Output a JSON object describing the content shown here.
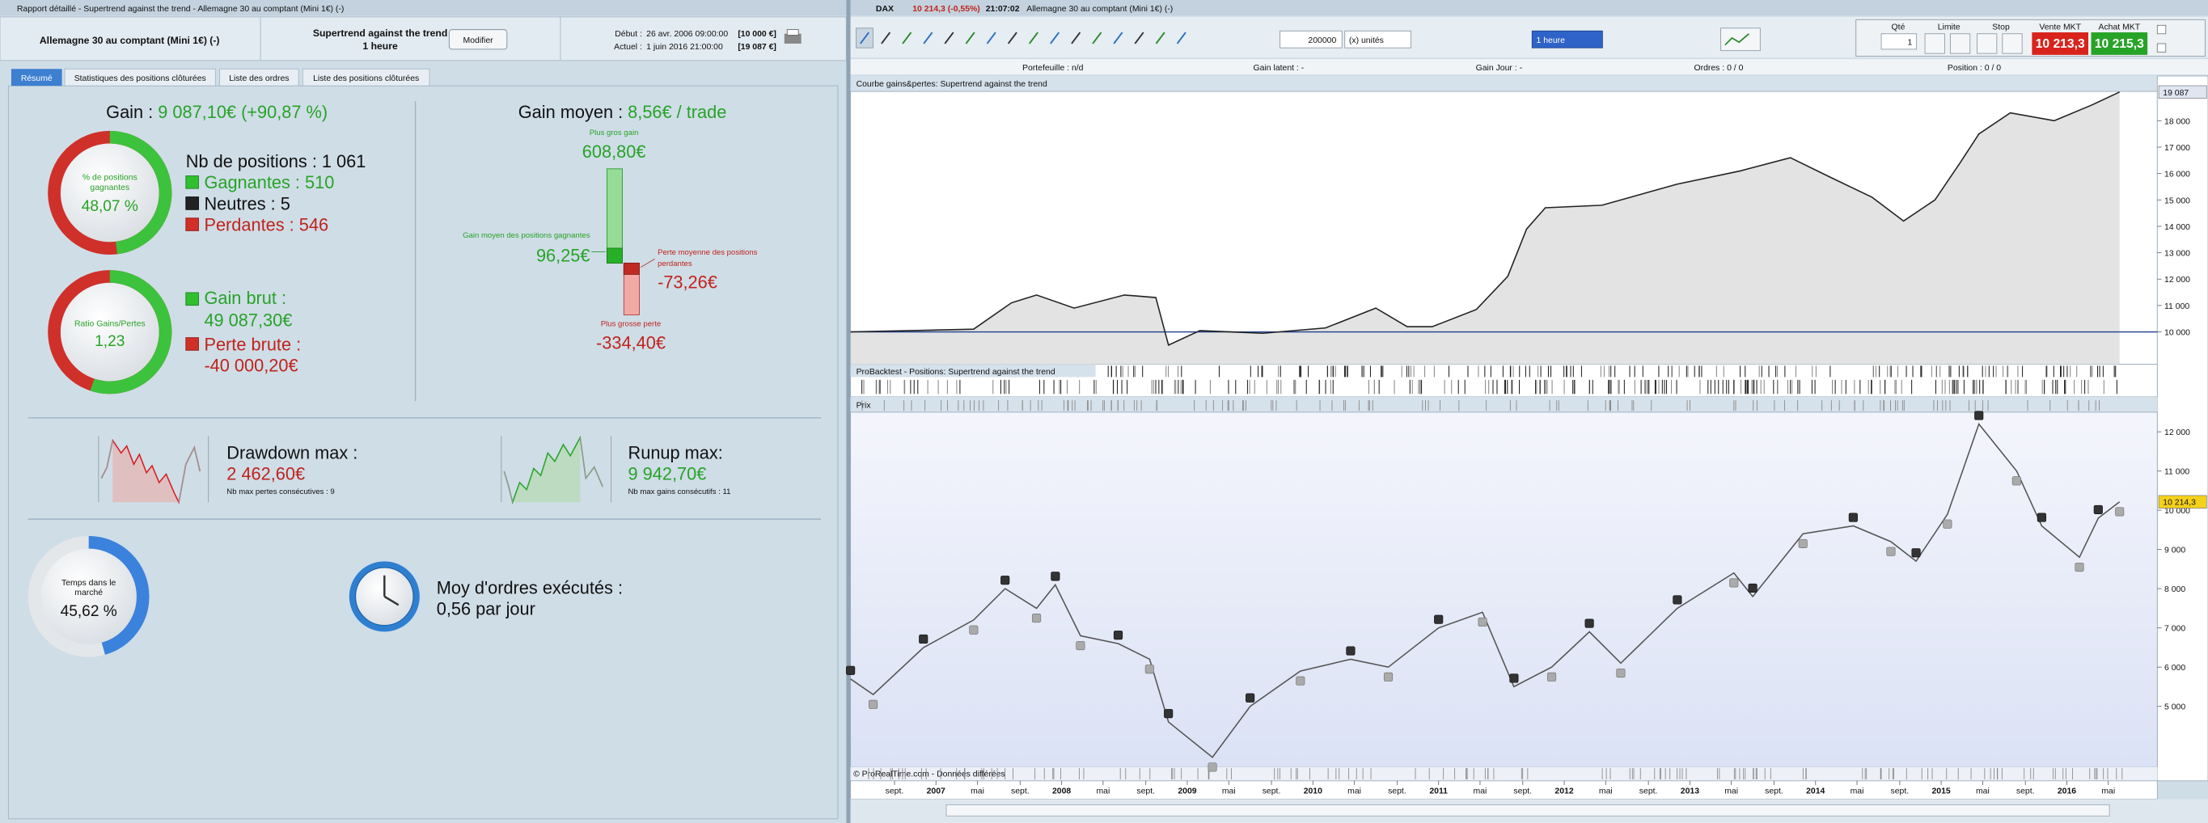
{
  "report": {
    "window_title": "Rapport détaillé - Supertrend against the trend - Allemagne 30 au comptant (Mini 1€) (-)",
    "instrument": "Allemagne 30 au comptant (Mini 1€) (-)",
    "system": "Supertrend against the trend",
    "timeframe": "1 heure",
    "edit_button": "Modifier",
    "start_label": "Début :",
    "start_date": "26 avr. 2006 09:00:00",
    "start_capital": "[10 000 €]",
    "current_label": "Actuel :",
    "current_date": "1 juin 2016 21:00:00",
    "current_capital": "[19 087 €]",
    "tabs": [
      "Résumé",
      "Statistiques des positions clôturées",
      "Liste des ordres",
      "Liste des positions clôturées"
    ],
    "gain_label": "Gain : ",
    "gain_value": "9 087,10€ (+90,87 %)",
    "win_donut_label": [
      "% de positions",
      "gagnantes"
    ],
    "win_pct": {
      "value": 48.07,
      "label": "48,07 %"
    },
    "positions_total": "Nb de positions : 1 061",
    "winners": "Gagnantes : 510",
    "neutral": "Neutres : 5",
    "losers": "Perdantes : 546",
    "ratio_label": "Ratio Gains/Pertes",
    "ratio_value": "1,23",
    "gross_gain_label": "Gain brut :",
    "gross_gain": {
      "value": 49087.3,
      "label": "49 087,30€"
    },
    "gross_loss_label": "Perte brute :",
    "gross_loss": {
      "value": -40000.2,
      "label": "-40 000,20€"
    },
    "avg_gain_label": "Gain moyen : ",
    "avg_gain_value": "8,56€ / trade",
    "avg_bars": [
      {
        "label": [
          "Plus gros gain"
        ],
        "value": 608.8,
        "value_label": "608,80€"
      },
      {
        "label": [
          "Gain moyen des positions gagnantes"
        ],
        "value": 96.25,
        "value_label": "96,25€"
      },
      {
        "label": [
          "Perte moyenne des positions",
          "perdantes"
        ],
        "value": -73.26,
        "value_label": "-73,26€"
      },
      {
        "label": [
          "Plus grosse perte"
        ],
        "value": -334.4,
        "value_label": "-334,40€"
      }
    ],
    "drawdown_label": "Drawdown max :",
    "drawdown_value": "2 462,60€",
    "drawdown_note": "Nb max pertes consécutives : 9",
    "runup_label": "Runup max:",
    "runup_value": "9 942,70€",
    "runup_note": "Nb max gains consécutifs : 11",
    "market_time_label": [
      "Temps dans le",
      "marché"
    ],
    "market_time": {
      "value": 45.62,
      "label": "45,62 %"
    },
    "orders_label": "Moy d'ordres exécutés :",
    "orders_value": "0,56 par jour"
  },
  "platform": {
    "symbol": "DAX",
    "quote": "10 214,3 (-0,55%)",
    "time": "21:07:02",
    "instrument": "Allemagne 30 au comptant (Mini 1€) (-)",
    "quantity": "200000",
    "unit": "(x) unités",
    "timeframe": "1 heure",
    "qty_label": "Qté",
    "qty_value": "1",
    "limit_label": "Limite",
    "stop_label": "Stop",
    "sell_label": "Vente MKT",
    "sell_price": "10 213,3",
    "buy_label": "Achat MKT",
    "buy_price": "10 215,3",
    "portfolio": "Portefeuille : n/d",
    "unrealized": "Gain latent : -",
    "day_gain": "Gain Jour : -",
    "orders": "Ordres : 0 / 0",
    "position": "Position : 0 / 0",
    "positions_panel": "ProBacktest - Positions: Supertrend against the trend",
    "copyright": "© ProRealTime.com - Données différées"
  },
  "chart_data": [
    {
      "type": "line",
      "title": "Courbe gains&pertes: Supertrend against the trend",
      "color": "#222222",
      "x": [
        2006.32,
        2006.8,
        2007.3,
        2007.6,
        2007.8,
        2008.1,
        2008.5,
        2008.75,
        2008.85,
        2009.1,
        2009.6,
        2010.1,
        2010.5,
        2010.75,
        2010.95,
        2011.3,
        2011.55,
        2011.7,
        2011.85,
        2012.3,
        2012.9,
        2013.4,
        2013.8,
        2014.1,
        2014.45,
        2014.7,
        2014.95,
        2015.15,
        2015.3,
        2015.55,
        2015.9,
        2016.2,
        2016.42
      ],
      "values": [
        10000,
        10050,
        10100,
        11100,
        11400,
        10900,
        11400,
        11300,
        9500,
        10050,
        9950,
        10150,
        10900,
        10200,
        10200,
        10850,
        12100,
        13900,
        14700,
        14800,
        15600,
        16100,
        16600,
        15900,
        15100,
        14200,
        15000,
        16400,
        17500,
        18300,
        18000,
        18600,
        19087
      ],
      "value_labels": [
        null,
        null,
        null,
        null,
        null,
        null,
        null,
        null,
        null,
        null,
        null,
        null,
        null,
        null,
        null,
        null,
        null,
        null,
        null,
        null,
        null,
        null,
        null,
        null,
        null,
        null,
        null,
        null,
        null,
        null,
        null,
        null,
        "19 087"
      ],
      "xlim": [
        2006.32,
        2016.72
      ],
      "ylim": [
        8770,
        19110
      ],
      "yticks": [
        {
          "value": 10000,
          "label": "10 000"
        },
        {
          "value": 11000,
          "label": "11 000"
        },
        {
          "value": 12000,
          "label": "12 000"
        },
        {
          "value": 13000,
          "label": "13 000"
        },
        {
          "value": 14000,
          "label": "14 000"
        },
        {
          "value": 15000,
          "label": "15 000"
        },
        {
          "value": 16000,
          "label": "16 000"
        },
        {
          "value": 17000,
          "label": "17 000"
        },
        {
          "value": 18000,
          "label": "18 000"
        }
      ]
    },
    {
      "type": "line",
      "title": "Prix",
      "color": "#555555",
      "x": [
        2006.32,
        2006.5,
        2006.9,
        2007.3,
        2007.55,
        2007.8,
        2007.95,
        2008.15,
        2008.45,
        2008.7,
        2008.85,
        2009.2,
        2009.5,
        2009.9,
        2010.3,
        2010.6,
        2011.0,
        2011.35,
        2011.6,
        2011.9,
        2012.2,
        2012.45,
        2012.9,
        2013.35,
        2013.5,
        2013.9,
        2014.3,
        2014.6,
        2014.8,
        2015.05,
        2015.3,
        2015.6,
        2015.8,
        2016.1,
        2016.25,
        2016.42
      ],
      "values": [
        5700,
        5300,
        6500,
        7200,
        8000,
        7500,
        8100,
        6800,
        6600,
        6200,
        4600,
        3700,
        5000,
        5900,
        6200,
        6000,
        7000,
        7400,
        5500,
        6000,
        6900,
        6100,
        7500,
        8400,
        7800,
        9400,
        9600,
        9200,
        8700,
        9900,
        12200,
        11000,
        9600,
        8800,
        9800,
        10214.3
      ],
      "value_labels": [
        null,
        null,
        null,
        null,
        null,
        null,
        null,
        null,
        null,
        null,
        null,
        null,
        null,
        null,
        null,
        null,
        null,
        null,
        null,
        null,
        null,
        null,
        null,
        null,
        null,
        null,
        null,
        null,
        null,
        null,
        null,
        null,
        null,
        null,
        null,
        "10 214,3"
      ],
      "xlim": [
        2006.32,
        2016.72
      ],
      "ylim": [
        3460,
        12500
      ],
      "yticks": [
        {
          "value": 5000,
          "label": "5 000"
        },
        {
          "value": 6000,
          "label": "6 000"
        },
        {
          "value": 7000,
          "label": "7 000"
        },
        {
          "value": 8000,
          "label": "8 000"
        },
        {
          "value": 9000,
          "label": "9 000"
        },
        {
          "value": 10000,
          "label": "10 000"
        },
        {
          "value": 11000,
          "label": "11 000"
        },
        {
          "value": 12000,
          "label": "12 000"
        }
      ],
      "xticks": [
        {
          "value": 2006.67,
          "label": "sept."
        },
        2007,
        {
          "value": 2007.33,
          "label": "mai"
        },
        {
          "value": 2007.67,
          "label": "sept."
        },
        2008,
        {
          "value": 2008.33,
          "label": "mai"
        },
        {
          "value": 2008.67,
          "label": "sept."
        },
        2009,
        {
          "value": 2009.33,
          "label": "mai"
        },
        {
          "value": 2009.67,
          "label": "sept."
        },
        2010,
        {
          "value": 2010.33,
          "label": "mai"
        },
        {
          "value": 2010.67,
          "label": "sept."
        },
        2011,
        {
          "value": 2011.33,
          "label": "mai"
        },
        {
          "value": 2011.67,
          "label": "sept."
        },
        2012,
        {
          "value": 2012.33,
          "label": "mai"
        },
        {
          "value": 2012.67,
          "label": "sept."
        },
        2013,
        {
          "value": 2013.33,
          "label": "mai"
        },
        {
          "value": 2013.67,
          "label": "sept."
        },
        2014,
        {
          "value": 2014.33,
          "label": "mai"
        },
        {
          "value": 2014.67,
          "label": "sept."
        },
        2015,
        {
          "value": 2015.33,
          "label": "mai"
        },
        {
          "value": 2015.67,
          "label": "sept."
        },
        2016,
        {
          "value": 2016.33,
          "label": "mai"
        }
      ]
    }
  ]
}
